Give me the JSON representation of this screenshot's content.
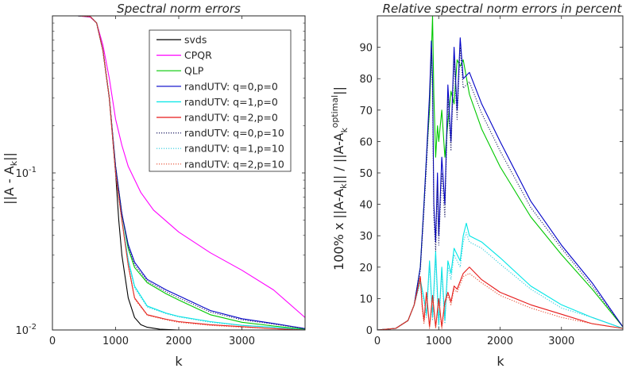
{
  "chart_data": [
    {
      "type": "line",
      "title": "Spectral norm errors",
      "xlabel": "k",
      "ylabel": "||A - A_k||",
      "xlim": [
        0,
        4000
      ],
      "ylim": [
        0.01,
        1
      ],
      "yscale": "log",
      "xticks": [
        {
          "v": 0,
          "label": "0"
        },
        {
          "v": 1000,
          "label": "1000"
        },
        {
          "v": 2000,
          "label": "2000"
        },
        {
          "v": 3000,
          "label": "3000"
        }
      ],
      "yticks": [
        {
          "v": 0.1,
          "label": "10",
          "exp": "-1"
        },
        {
          "v": 0.01,
          "label": "10",
          "exp": "-2"
        }
      ],
      "legend_position": "top-right",
      "series": [
        {
          "name": "svds",
          "color": "#000000",
          "dash": "solid",
          "x": [
            0,
            400,
            600,
            700,
            800,
            900,
            1000,
            1050,
            1100,
            1200,
            1300,
            1400,
            1500,
            1700,
            2000,
            3000,
            4000
          ],
          "y": [
            1,
            1,
            0.99,
            0.9,
            0.6,
            0.3,
            0.1,
            0.05,
            0.03,
            0.016,
            0.012,
            0.0108,
            0.0104,
            0.0101,
            0.01,
            0.01,
            0.01
          ]
        },
        {
          "name": "CPQR",
          "color": "#ff00ff",
          "dash": "solid",
          "x": [
            0,
            400,
            600,
            700,
            800,
            900,
            1000,
            1100,
            1200,
            1400,
            1600,
            2000,
            2500,
            3000,
            3500,
            4000
          ],
          "y": [
            1,
            1,
            0.98,
            0.9,
            0.65,
            0.4,
            0.22,
            0.15,
            0.11,
            0.075,
            0.058,
            0.042,
            0.031,
            0.024,
            0.018,
            0.012
          ]
        },
        {
          "name": "QLP",
          "color": "#00c800",
          "dash": "solid",
          "x": [
            0,
            400,
            600,
            700,
            800,
            900,
            1000,
            1100,
            1200,
            1300,
            1500,
            1800,
            2000,
            2500,
            3000,
            3500,
            4000
          ],
          "y": [
            1,
            1,
            0.99,
            0.9,
            0.6,
            0.3,
            0.11,
            0.055,
            0.033,
            0.025,
            0.02,
            0.017,
            0.0155,
            0.0125,
            0.0112,
            0.0106,
            0.0101
          ]
        },
        {
          "name": "randUTV: q=0,p=0",
          "color": "#0000c8",
          "dash": "solid",
          "x": [
            0,
            400,
            600,
            700,
            800,
            900,
            1000,
            1100,
            1200,
            1300,
            1500,
            1800,
            2000,
            2500,
            3000,
            3500,
            4000
          ],
          "y": [
            1,
            1,
            0.99,
            0.9,
            0.6,
            0.3,
            0.11,
            0.055,
            0.035,
            0.027,
            0.021,
            0.018,
            0.0165,
            0.0133,
            0.0118,
            0.011,
            0.0102
          ]
        },
        {
          "name": "randUTV: q=1,p=0",
          "color": "#00e6e6",
          "dash": "solid",
          "x": [
            0,
            400,
            600,
            700,
            800,
            900,
            1000,
            1100,
            1200,
            1300,
            1500,
            1800,
            2000,
            2500,
            3000,
            3500,
            4000
          ],
          "y": [
            1,
            1,
            0.99,
            0.9,
            0.6,
            0.3,
            0.1,
            0.05,
            0.028,
            0.019,
            0.0142,
            0.0128,
            0.0122,
            0.0113,
            0.0107,
            0.0104,
            0.01
          ]
        },
        {
          "name": "randUTV: q=2,p=0",
          "color": "#e61919",
          "dash": "solid",
          "x": [
            0,
            400,
            600,
            700,
            800,
            900,
            1000,
            1100,
            1200,
            1300,
            1500,
            1800,
            2000,
            2500,
            3000,
            3500,
            4000
          ],
          "y": [
            1,
            1,
            0.99,
            0.9,
            0.6,
            0.3,
            0.1,
            0.05,
            0.026,
            0.016,
            0.0125,
            0.0117,
            0.0113,
            0.0108,
            0.0105,
            0.0102,
            0.01
          ]
        },
        {
          "name": "randUTV: q=0,p=10",
          "color": "#1f1f66",
          "dash": "dotted",
          "x": [
            0,
            400,
            600,
            700,
            800,
            900,
            1000,
            1100,
            1200,
            1300,
            1500,
            1800,
            2000,
            2500,
            3000,
            3500,
            4000
          ],
          "y": [
            1,
            1,
            0.99,
            0.9,
            0.6,
            0.3,
            0.11,
            0.055,
            0.034,
            0.026,
            0.0205,
            0.0175,
            0.016,
            0.013,
            0.0116,
            0.0109,
            0.0102
          ]
        },
        {
          "name": "randUTV: q=1,p=10",
          "color": "#33ccdd",
          "dash": "dotted",
          "x": [
            0,
            400,
            600,
            700,
            800,
            900,
            1000,
            1100,
            1200,
            1300,
            1500,
            1800,
            2000,
            2500,
            3000,
            3500,
            4000
          ],
          "y": [
            1,
            1,
            0.99,
            0.9,
            0.6,
            0.3,
            0.1,
            0.05,
            0.027,
            0.0185,
            0.014,
            0.0127,
            0.0121,
            0.0112,
            0.0107,
            0.0104,
            0.01
          ]
        },
        {
          "name": "randUTV: q=2,p=10",
          "color": "#e64d33",
          "dash": "dotted",
          "x": [
            0,
            400,
            600,
            700,
            800,
            900,
            1000,
            1100,
            1200,
            1300,
            1500,
            1800,
            2000,
            2500,
            3000,
            3500,
            4000
          ],
          "y": [
            1,
            1,
            0.99,
            0.9,
            0.6,
            0.3,
            0.1,
            0.05,
            0.0255,
            0.0158,
            0.0124,
            0.0116,
            0.0112,
            0.0107,
            0.0104,
            0.0102,
            0.01
          ]
        }
      ]
    },
    {
      "type": "line",
      "title": "Relative spectral norm errors in percent",
      "xlabel": "k",
      "ylabel": "100% x ||A-A_k|| / ||A-A_k^optimal||",
      "xlim": [
        0,
        4000
      ],
      "ylim": [
        0,
        100
      ],
      "yscale": "linear",
      "xticks": [
        {
          "v": 0,
          "label": "0"
        },
        {
          "v": 1000,
          "label": "1000"
        },
        {
          "v": 2000,
          "label": "2000"
        },
        {
          "v": 3000,
          "label": "3000"
        }
      ],
      "yticks": [
        {
          "v": 0,
          "label": "0"
        },
        {
          "v": 10,
          "label": "10"
        },
        {
          "v": 20,
          "label": "20"
        },
        {
          "v": 30,
          "label": "30"
        },
        {
          "v": 40,
          "label": "40"
        },
        {
          "v": 50,
          "label": "50"
        },
        {
          "v": 60,
          "label": "60"
        },
        {
          "v": 70,
          "label": "70"
        },
        {
          "v": 80,
          "label": "80"
        },
        {
          "v": 90,
          "label": "90"
        }
      ],
      "series": [
        {
          "name": "QLP",
          "color": "#00c800",
          "dash": "solid",
          "x": [
            0,
            300,
            500,
            600,
            700,
            760,
            800,
            850,
            880,
            900,
            920,
            950,
            980,
            1000,
            1050,
            1100,
            1150,
            1200,
            1250,
            1300,
            1350,
            1400,
            1500,
            1700,
            2000,
            2500,
            3000,
            3500,
            4000
          ],
          "y": [
            0,
            0.5,
            3,
            8,
            20,
            40,
            55,
            70,
            88,
            100,
            75,
            55,
            65,
            60,
            70,
            55,
            66,
            76,
            72,
            86,
            84,
            86,
            75,
            64,
            52,
            36,
            24,
            13,
            1
          ]
        },
        {
          "name": "randUTV: q=0,p=0",
          "color": "#0000c8",
          "dash": "solid",
          "x": [
            0,
            300,
            500,
            600,
            700,
            760,
            800,
            850,
            880,
            900,
            920,
            950,
            980,
            1000,
            1050,
            1100,
            1150,
            1200,
            1250,
            1300,
            1350,
            1400,
            1500,
            1700,
            2000,
            2500,
            3000,
            3500,
            4000
          ],
          "y": [
            0,
            0.5,
            3,
            8,
            20,
            40,
            55,
            75,
            92,
            80,
            40,
            28,
            50,
            30,
            55,
            40,
            78,
            60,
            90,
            70,
            93,
            80,
            82,
            72,
            60,
            41,
            27,
            15,
            1
          ]
        },
        {
          "name": "randUTV: q=0,p=10",
          "color": "#1f1f66",
          "dash": "dotted",
          "x": [
            0,
            300,
            500,
            600,
            700,
            760,
            800,
            850,
            880,
            900,
            920,
            950,
            980,
            1000,
            1050,
            1100,
            1150,
            1200,
            1250,
            1300,
            1350,
            1400,
            1500,
            1700,
            2000,
            2500,
            3000,
            3500,
            4000
          ],
          "y": [
            0,
            0.5,
            3,
            8,
            19,
            38,
            52,
            72,
            90,
            76,
            36,
            25,
            46,
            27,
            50,
            36,
            74,
            57,
            86,
            67,
            90,
            77,
            79,
            69,
            57,
            39,
            26,
            14,
            1
          ]
        },
        {
          "name": "randUTV: q=1,p=0",
          "color": "#00e6e6",
          "dash": "solid",
          "x": [
            0,
            300,
            500,
            600,
            700,
            760,
            800,
            850,
            900,
            950,
            1000,
            1050,
            1100,
            1150,
            1200,
            1250,
            1300,
            1350,
            1400,
            1450,
            1500,
            1700,
            2000,
            2500,
            3000,
            3500,
            4000
          ],
          "y": [
            0,
            0.5,
            3,
            8,
            16,
            10,
            5,
            22,
            4,
            25,
            2,
            20,
            3,
            22,
            18,
            26,
            24,
            22,
            30,
            34,
            30,
            28,
            23,
            14,
            8,
            4,
            0.5
          ]
        },
        {
          "name": "randUTV: q=1,p=10",
          "color": "#33ccdd",
          "dash": "dotted",
          "x": [
            0,
            300,
            500,
            600,
            700,
            760,
            800,
            850,
            900,
            950,
            1000,
            1050,
            1100,
            1150,
            1200,
            1250,
            1300,
            1350,
            1400,
            1450,
            1500,
            1700,
            2000,
            2500,
            3000,
            3500,
            4000
          ],
          "y": [
            0,
            0.5,
            3,
            8,
            15,
            9,
            4,
            21,
            3,
            23,
            1,
            18,
            2,
            20,
            16,
            24,
            22,
            20,
            28,
            31,
            28,
            26,
            21,
            13,
            7,
            4,
            0.5
          ]
        },
        {
          "name": "randUTV: q=2,p=0",
          "color": "#e61919",
          "dash": "solid",
          "x": [
            0,
            300,
            500,
            600,
            700,
            730,
            760,
            800,
            850,
            900,
            950,
            1000,
            1050,
            1100,
            1150,
            1200,
            1250,
            1300,
            1400,
            1500,
            1700,
            2000,
            2500,
            3000,
            3500,
            4000
          ],
          "y": [
            0,
            0.5,
            3,
            8,
            17,
            8,
            3,
            12,
            1,
            11,
            1,
            10,
            1,
            9,
            12,
            9,
            14,
            13,
            18,
            20,
            16,
            12,
            8,
            5,
            2,
            0.5
          ]
        },
        {
          "name": "randUTV: q=2,p=10",
          "color": "#e64d33",
          "dash": "dotted",
          "x": [
            0,
            300,
            500,
            600,
            700,
            730,
            760,
            800,
            850,
            900,
            950,
            1000,
            1050,
            1100,
            1150,
            1200,
            1250,
            1300,
            1400,
            1500,
            1700,
            2000,
            2500,
            3000,
            3500,
            4000
          ],
          "y": [
            0,
            0.5,
            3,
            8,
            16,
            7,
            2,
            11,
            0.5,
            10,
            0.5,
            9,
            0.5,
            8,
            11,
            8,
            13,
            12,
            17,
            18,
            15,
            11,
            7,
            4,
            2,
            0.5
          ]
        }
      ]
    }
  ]
}
